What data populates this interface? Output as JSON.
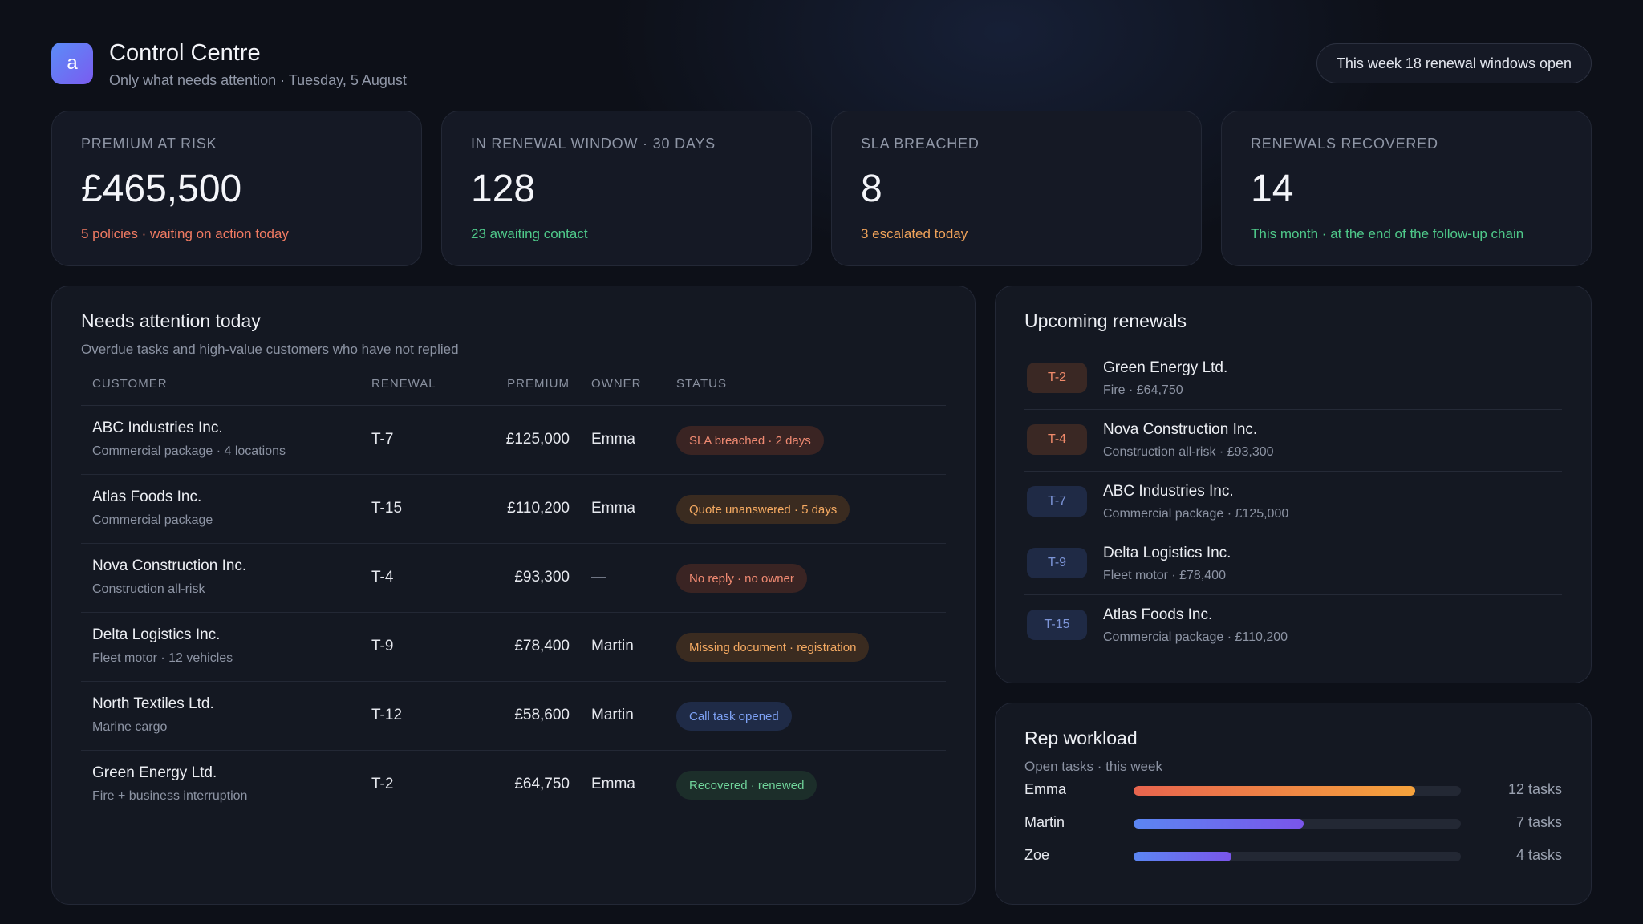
{
  "header": {
    "logo_letter": "a",
    "title": "Control Centre",
    "subtitle": "Only what needs attention · Tuesday, 5 August",
    "week_pill": "This week 18 renewal windows open"
  },
  "kpis": [
    {
      "label": "Premium at risk",
      "value": "£465,500",
      "note": "5 policies · waiting on action today",
      "note_color": "#f07a62"
    },
    {
      "label": "In renewal window · 30 days",
      "value": "128",
      "note": "23 awaiting contact",
      "note_color": "#4fc98a"
    },
    {
      "label": "SLA breached",
      "value": "8",
      "note": "3 escalated today",
      "note_color": "#f0a35a"
    },
    {
      "label": "Renewals recovered",
      "value": "14",
      "note": "This month · at the end of the follow-up chain",
      "note_color": "#4fc98a"
    }
  ],
  "attention": {
    "title": "Needs attention today",
    "subtitle": "Overdue tasks and high-value customers who have not replied",
    "columns": {
      "customer": "Customer",
      "renewal": "Renewal",
      "premium": "Premium",
      "owner": "Owner",
      "status": "Status"
    },
    "rows": [
      {
        "name": "ABC Industries Inc.",
        "detail": "Commercial package · 4 locations",
        "renewal": "T-7",
        "premium": "£125,000",
        "owner": "Emma",
        "status": "SLA breached · 2 days",
        "status_tone": "red"
      },
      {
        "name": "Atlas Foods Inc.",
        "detail": "Commercial package",
        "renewal": "T-15",
        "premium": "£110,200",
        "owner": "Emma",
        "status": "Quote unanswered · 5 days",
        "status_tone": "orange"
      },
      {
        "name": "Nova Construction Inc.",
        "detail": "Construction all-risk",
        "renewal": "T-4",
        "premium": "£93,300",
        "owner": "—",
        "status": "No reply · no owner",
        "status_tone": "red"
      },
      {
        "name": "Delta Logistics Inc.",
        "detail": "Fleet motor · 12 vehicles",
        "renewal": "T-9",
        "premium": "£78,400",
        "owner": "Martin",
        "status": "Missing document · registration",
        "status_tone": "orange"
      },
      {
        "name": "North Textiles Ltd.",
        "detail": "Marine cargo",
        "renewal": "T-12",
        "premium": "£58,600",
        "owner": "Martin",
        "status": "Call task opened",
        "status_tone": "blue"
      },
      {
        "name": "Green Energy Ltd.",
        "detail": "Fire + business interruption",
        "renewal": "T-2",
        "premium": "£64,750",
        "owner": "Emma",
        "status": "Recovered · renewed",
        "status_tone": "green"
      }
    ]
  },
  "upcoming": {
    "title": "Upcoming renewals",
    "items": [
      {
        "tag": "T-2",
        "tone": "warm",
        "name": "Green Energy Ltd.",
        "detail": "Fire · £64,750"
      },
      {
        "tag": "T-4",
        "tone": "warm",
        "name": "Nova Construction Inc.",
        "detail": "Construction all-risk · £93,300"
      },
      {
        "tag": "T-7",
        "tone": "cool",
        "name": "ABC Industries Inc.",
        "detail": "Commercial package · £125,000"
      },
      {
        "tag": "T-9",
        "tone": "cool",
        "name": "Delta Logistics Inc.",
        "detail": "Fleet motor · £78,400"
      },
      {
        "tag": "T-15",
        "tone": "cool",
        "name": "Atlas Foods Inc.",
        "detail": "Commercial package · £110,200"
      }
    ]
  },
  "workload": {
    "title": "Rep workload",
    "subtitle": "Open tasks · this week",
    "reps": [
      {
        "name": "Emma",
        "tasks": 12,
        "count_label": "12 tasks",
        "fill_fraction": 0.86,
        "tone": "warm"
      },
      {
        "name": "Martin",
        "tasks": 7,
        "count_label": "7 tasks",
        "fill_fraction": 0.52,
        "tone": "cool"
      },
      {
        "name": "Zoe",
        "tasks": 4,
        "count_label": "4 tasks",
        "fill_fraction": 0.3,
        "tone": "cool"
      }
    ]
  }
}
